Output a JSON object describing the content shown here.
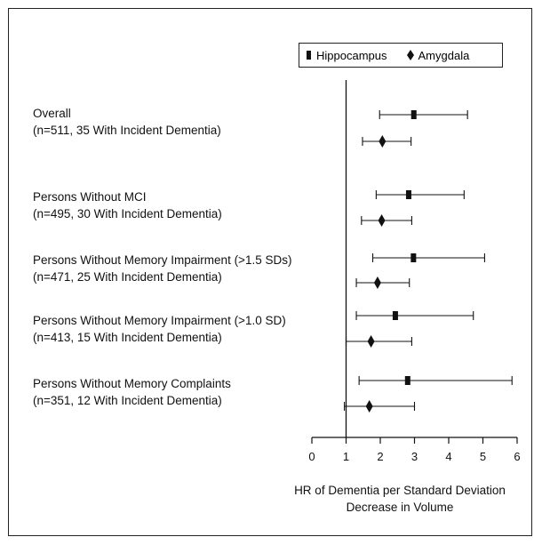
{
  "chart_data": {
    "type": "forest",
    "title": "",
    "xlabel": "HR of Dementia per Standard Deviation Decrease in Volume",
    "ylabel": "",
    "xlim": [
      0,
      6
    ],
    "xticks": [
      0,
      1,
      2,
      3,
      4,
      5,
      6
    ],
    "reference_line": 1,
    "legend_position": "top-right",
    "series": [
      {
        "name": "Hippocampus",
        "marker": "square"
      },
      {
        "name": "Amygdala",
        "marker": "diamond"
      }
    ],
    "groups": [
      {
        "label_line1": "Overall",
        "label_line2": "(n=511, 35 With Incident Dementia)",
        "hippocampus": {
          "hr": 2.98,
          "lo": 1.98,
          "hi": 4.55
        },
        "amygdala": {
          "hr": 2.06,
          "lo": 1.48,
          "hi": 2.9
        }
      },
      {
        "label_line1": "Persons Without MCI",
        "label_line2": "(n=495, 30 With Incident Dementia)",
        "hippocampus": {
          "hr": 2.83,
          "lo": 1.88,
          "hi": 4.45
        },
        "amygdala": {
          "hr": 2.04,
          "lo": 1.45,
          "hi": 2.92
        }
      },
      {
        "label_line1": "Persons Without Memory Impairment (>1.5 SDs)",
        "label_line2": "(n=471, 25 With Incident Dementia)",
        "hippocampus": {
          "hr": 2.97,
          "lo": 1.78,
          "hi": 5.05
        },
        "amygdala": {
          "hr": 1.92,
          "lo": 1.3,
          "hi": 2.85
        }
      },
      {
        "label_line1": "Persons Without Memory Impairment (>1.0 SD)",
        "label_line2": "(n=413, 15 With Incident Dementia)",
        "hippocampus": {
          "hr": 2.44,
          "lo": 1.3,
          "hi": 4.72
        },
        "amygdala": {
          "hr": 1.73,
          "lo": 1.0,
          "hi": 2.92
        }
      },
      {
        "label_line1": "Persons Without Memory Complaints",
        "label_line2": "(n=351, 12 With Incident Dementia)",
        "hippocampus": {
          "hr": 2.8,
          "lo": 1.38,
          "hi": 5.85
        },
        "amygdala": {
          "hr": 1.68,
          "lo": 0.95,
          "hi": 3.0
        }
      }
    ]
  }
}
